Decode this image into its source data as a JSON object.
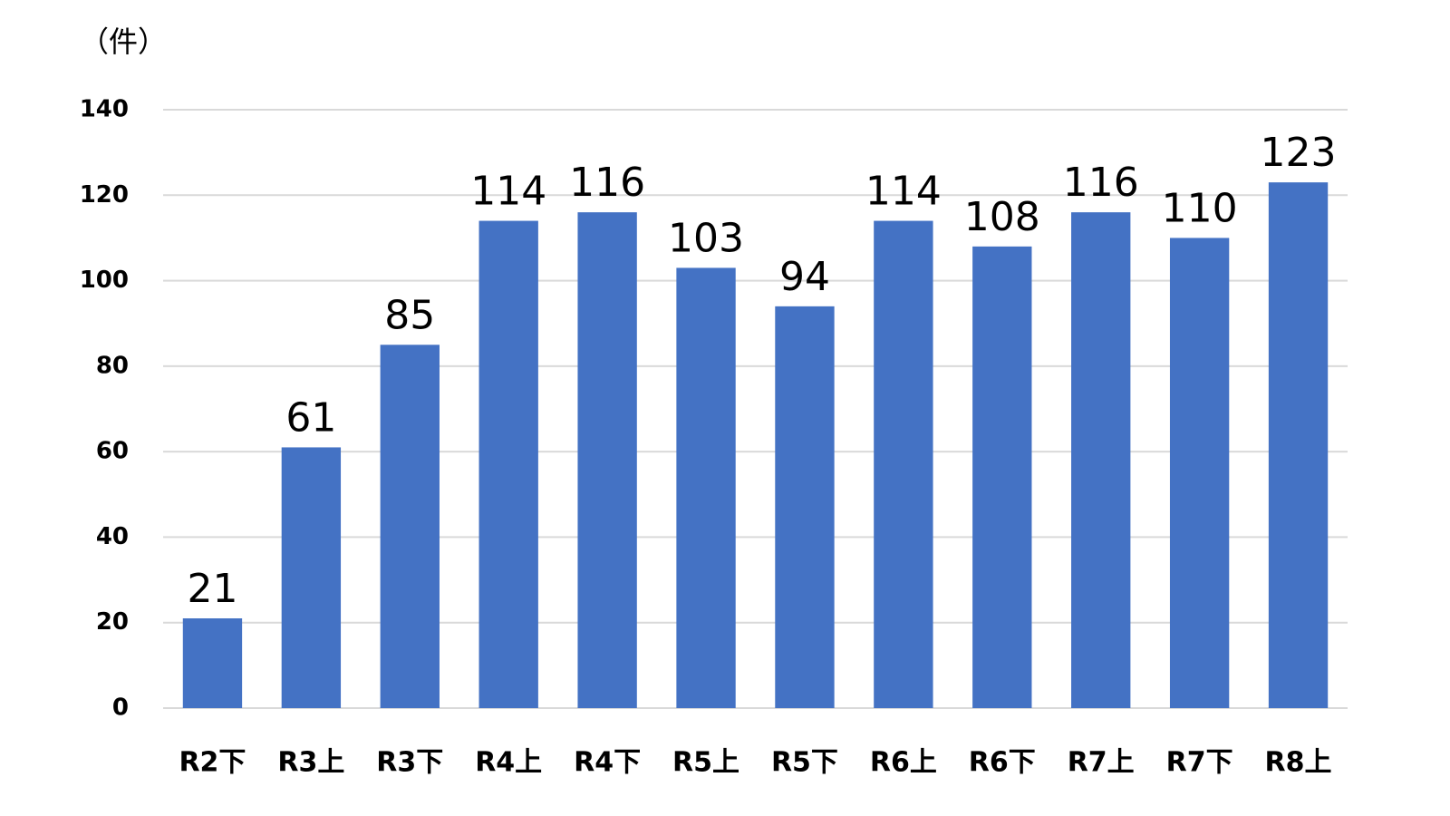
{
  "chart_data": {
    "type": "bar",
    "y_label": "（件）",
    "categories": [
      "R2下",
      "R3上",
      "R3下",
      "R4上",
      "R4下",
      "R5上",
      "R5下",
      "R6上",
      "R6下",
      "R7上",
      "R7下",
      "R8上"
    ],
    "values": [
      21,
      61,
      85,
      114,
      116,
      103,
      94,
      114,
      108,
      116,
      110,
      123
    ],
    "color": "#4472c4",
    "ylim": [
      0,
      140
    ],
    "yticks": [
      0,
      20,
      40,
      60,
      80,
      100,
      120,
      140
    ],
    "grid": true
  }
}
